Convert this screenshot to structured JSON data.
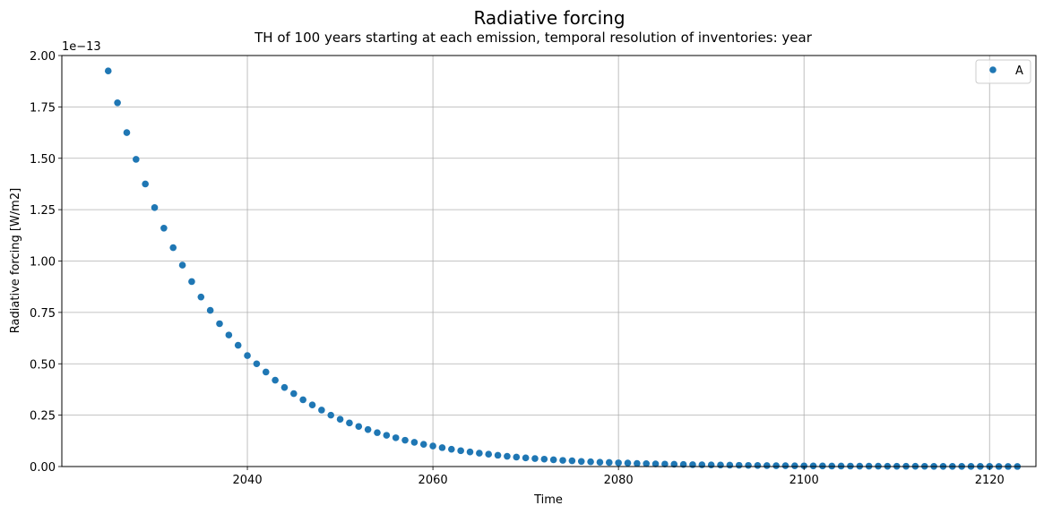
{
  "chart_data": {
    "type": "scatter",
    "title": "Radiative forcing",
    "subtitle": "TH of 100 years starting at each emission, temporal resolution of inventories: year",
    "xlabel": "Time",
    "ylabel": "Radiative forcing [W/m2]",
    "y_offset_label": "1e−13",
    "xlim": [
      2020,
      2125
    ],
    "ylim": [
      0,
      2.0
    ],
    "x_ticks": [
      2040,
      2060,
      2080,
      2100,
      2120
    ],
    "x_tick_labels": [
      "2040",
      "2060",
      "2080",
      "2100",
      "2120"
    ],
    "y_ticks": [
      0,
      0.25,
      0.5,
      0.75,
      1.0,
      1.25,
      1.5,
      1.75,
      2.0
    ],
    "y_tick_labels": [
      "0.00",
      "0.25",
      "0.50",
      "0.75",
      "1.00",
      "1.25",
      "1.50",
      "1.75",
      "2.00"
    ],
    "grid": true,
    "legend_position": "top-right",
    "series": [
      {
        "name": "A",
        "color": "#1f77b4",
        "x": [
          2025,
          2026,
          2027,
          2028,
          2029,
          2030,
          2031,
          2032,
          2033,
          2034,
          2035,
          2036,
          2037,
          2038,
          2039,
          2040,
          2041,
          2042,
          2043,
          2044,
          2045,
          2046,
          2047,
          2048,
          2049,
          2050,
          2051,
          2052,
          2053,
          2054,
          2055,
          2056,
          2057,
          2058,
          2059,
          2060,
          2061,
          2062,
          2063,
          2064,
          2065,
          2066,
          2067,
          2068,
          2069,
          2070,
          2071,
          2072,
          2073,
          2074,
          2075,
          2076,
          2077,
          2078,
          2079,
          2080,
          2081,
          2082,
          2083,
          2084,
          2085,
          2086,
          2087,
          2088,
          2089,
          2090,
          2091,
          2092,
          2093,
          2094,
          2095,
          2096,
          2097,
          2098,
          2099,
          2100,
          2101,
          2102,
          2103,
          2104,
          2105,
          2106,
          2107,
          2108,
          2109,
          2110,
          2111,
          2112,
          2113,
          2114,
          2115,
          2116,
          2117,
          2118,
          2119,
          2120,
          2121,
          2122,
          2123
        ],
        "y": [
          1.925,
          1.77,
          1.625,
          1.495,
          1.375,
          1.26,
          1.16,
          1.065,
          0.98,
          0.9,
          0.825,
          0.76,
          0.695,
          0.64,
          0.59,
          0.54,
          0.5,
          0.46,
          0.42,
          0.385,
          0.355,
          0.325,
          0.3,
          0.275,
          0.25,
          0.23,
          0.212,
          0.195,
          0.18,
          0.165,
          0.152,
          0.14,
          0.128,
          0.118,
          0.108,
          0.1,
          0.092,
          0.084,
          0.077,
          0.071,
          0.065,
          0.06,
          0.055,
          0.05,
          0.046,
          0.042,
          0.039,
          0.036,
          0.033,
          0.03,
          0.028,
          0.025,
          0.023,
          0.021,
          0.02,
          0.018,
          0.017,
          0.015,
          0.014,
          0.013,
          0.012,
          0.011,
          0.01,
          0.009,
          0.0085,
          0.008,
          0.0072,
          0.0066,
          0.006,
          0.0055,
          0.005,
          0.0046,
          0.0042,
          0.0039,
          0.0036,
          0.0033,
          0.003,
          0.0028,
          0.0026,
          0.0024,
          0.0022,
          0.002,
          0.0018,
          0.0017,
          0.0015,
          0.0014,
          0.0013,
          0.0012,
          0.0011,
          0.001,
          0.0009,
          0.0008,
          0.0008,
          0.0007,
          0.0006,
          0.0006,
          0.0005,
          0.0005,
          0.0005
        ]
      }
    ]
  }
}
